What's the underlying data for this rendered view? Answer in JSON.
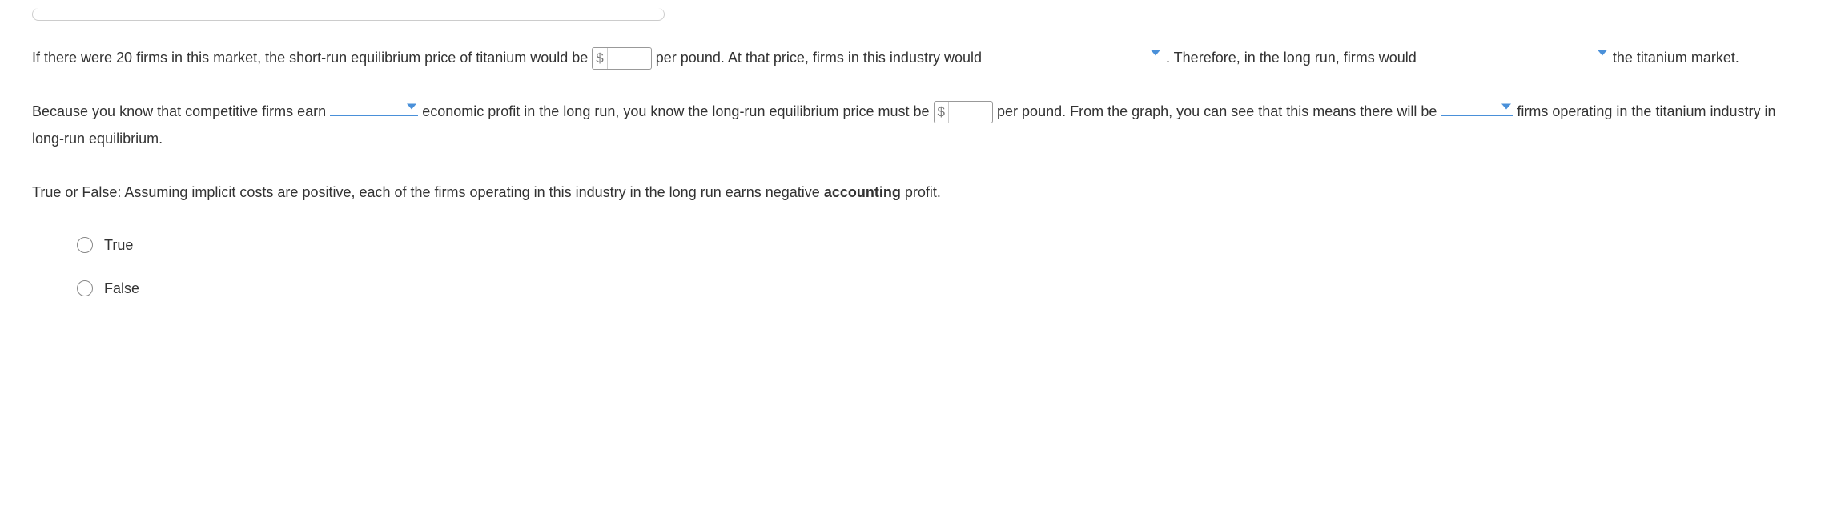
{
  "paragraph1": {
    "text1": "If there were 20 firms in this market, the short-run equilibrium price of titanium would be ",
    "input1_prefix": "$",
    "input1_value": "",
    "text2": " per pound. At that price, firms in this industry would ",
    "dd1_value": "",
    "text3": " . Therefore, in the long run, firms would ",
    "dd2_value": "",
    "text4": " the titanium market."
  },
  "paragraph2": {
    "text1": "Because you know that competitive firms earn ",
    "dd3_value": "",
    "text2": " economic profit in the long run, you know the long-run equilibrium price must be ",
    "input2_prefix": "$",
    "input2_value": "",
    "text3": " per pound. From the graph, you can see that this means there will be ",
    "dd4_value": "",
    "text4": " firms operating in the titanium industry in long-run equilibrium."
  },
  "tf_question": {
    "prefix": "True or False: Assuming implicit costs are positive, each of the firms operating in this industry in the long run earns negative ",
    "bold": "accounting",
    "suffix": " profit."
  },
  "options": {
    "true_label": "True",
    "false_label": "False"
  },
  "colors": {
    "underline": "#4a90d9",
    "caret": "#4a90d9",
    "text": "#333333",
    "border": "#999999"
  }
}
